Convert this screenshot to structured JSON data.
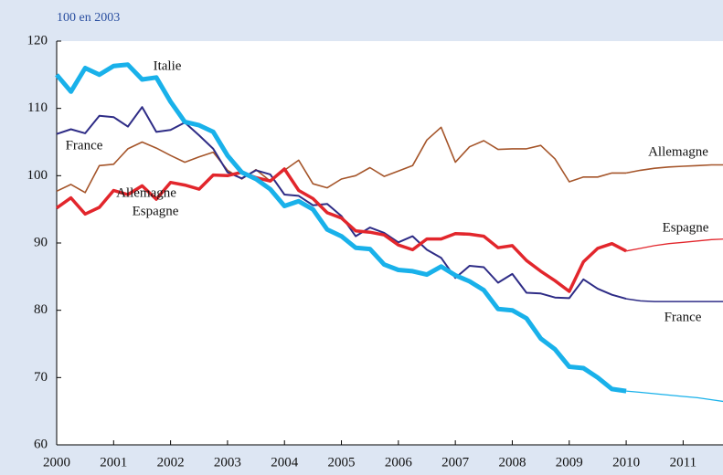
{
  "chart_data": {
    "type": "line",
    "subtitle": "100 en 2003",
    "x": [
      2000,
      2000.25,
      2000.5,
      2000.75,
      2001,
      2001.25,
      2001.5,
      2001.75,
      2002,
      2002.25,
      2002.5,
      2002.75,
      2003,
      2003.25,
      2003.5,
      2003.75,
      2004,
      2004.25,
      2004.5,
      2004.75,
      2005,
      2005.25,
      2005.5,
      2005.75,
      2006,
      2006.25,
      2006.5,
      2006.75,
      2007,
      2007.25,
      2007.5,
      2007.75,
      2008,
      2008.25,
      2008.5,
      2008.75,
      2009,
      2009.25,
      2009.5,
      2009.75,
      2010,
      2010.25,
      2010.5,
      2010.75,
      2011,
      2011.25,
      2011.5,
      2011.75
    ],
    "projection_from": 2010,
    "series": [
      {
        "name": "Italie",
        "color": "#19b1ea",
        "values": [
          115,
          112.5,
          116,
          115,
          116.3,
          116.5,
          114.3,
          114.6,
          111,
          108,
          107.5,
          106.5,
          103,
          100.5,
          99.5,
          98,
          95.5,
          96.2,
          95,
          92,
          91,
          89.3,
          89.1,
          86.8,
          86,
          85.8,
          85.3,
          86.5,
          85.2,
          84.3,
          83,
          80.2,
          80,
          78.8,
          75.8,
          74.2,
          71.6,
          71.4,
          70,
          68.3,
          68,
          67.8,
          67.6,
          67.4,
          67.2,
          67,
          66.7,
          66.4
        ]
      },
      {
        "name": "France",
        "color": "#2e2c86",
        "values": [
          106.2,
          106.9,
          106.3,
          108.9,
          108.7,
          107.3,
          110.2,
          106.5,
          106.8,
          107.9,
          106,
          104,
          100.5,
          99.6,
          100.8,
          100.2,
          97.2,
          97,
          95.6,
          95.8,
          94,
          91,
          92.3,
          91.5,
          90.1,
          91,
          89,
          87.8,
          84.8,
          86.6,
          86.4,
          84.1,
          85.4,
          82.6,
          82.5,
          81.9,
          81.8,
          84.6,
          83.2,
          82.3,
          81.7,
          81.4,
          81.3,
          81.3,
          81.3,
          81.3,
          81.3,
          81.3
        ]
      },
      {
        "name": "Allemagne",
        "color": "#a5552a",
        "values": [
          97.7,
          98.7,
          97.5,
          101.5,
          101.7,
          104,
          105,
          104.1,
          103,
          102,
          102.8,
          103.5,
          100.8,
          99.5,
          100.9,
          99.2,
          100.8,
          102.3,
          98.8,
          98.2,
          99.5,
          100,
          101.2,
          99.9,
          100.7,
          101.5,
          105.3,
          107.2,
          102,
          104.3,
          105.2,
          103.9,
          104,
          104,
          104.5,
          102.5,
          99.1,
          99.8,
          99.8,
          100.4,
          100.4,
          100.8,
          101.1,
          101.3,
          101.4,
          101.5,
          101.6,
          101.6
        ]
      },
      {
        "name": "Espagne",
        "color": "#e2262c",
        "values": [
          95.2,
          96.7,
          94.3,
          95.3,
          97.8,
          97.2,
          98.5,
          96.5,
          99,
          98.6,
          98,
          100.1,
          100,
          100.5,
          99.7,
          99.2,
          101,
          97.8,
          96.6,
          94.5,
          93.7,
          91.8,
          91.6,
          91.2,
          89.7,
          89,
          90.6,
          90.6,
          91.4,
          91.3,
          91,
          89.3,
          89.6,
          87.4,
          85.8,
          84.4,
          82.8,
          87.2,
          89.2,
          89.9,
          88.8,
          89.2,
          89.6,
          89.9,
          90.1,
          90.3,
          90.5,
          90.6
        ]
      }
    ],
    "xlim": [
      2000,
      2011.7
    ],
    "xticks": [
      2000,
      2001,
      2002,
      2003,
      2004,
      2005,
      2006,
      2007,
      2008,
      2009,
      2010,
      2011
    ],
    "ylim": [
      60,
      120
    ],
    "yticks": [
      60,
      70,
      80,
      90,
      100,
      110,
      120
    ]
  }
}
